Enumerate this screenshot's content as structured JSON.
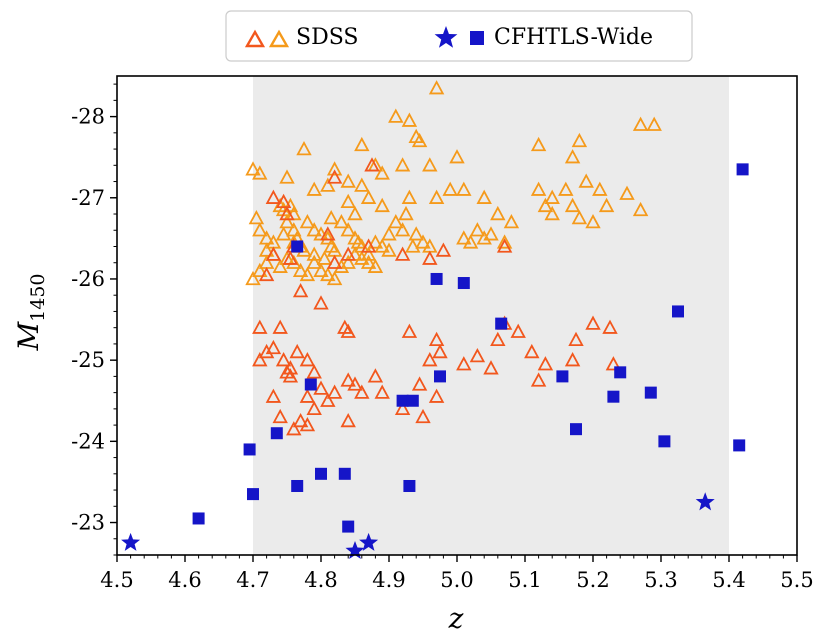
{
  "chart_data": {
    "type": "scatter",
    "title": "",
    "xlabel": "z",
    "ylabel": "M",
    "ylabel_sub": "1450",
    "xlim": [
      4.5,
      5.5
    ],
    "ylim": [
      -22.6,
      -28.5
    ],
    "y_inverted": true,
    "grid": false,
    "shaded_region": {
      "x": [
        4.7,
        5.4
      ],
      "color": "#ebebeb"
    },
    "legend_position": "top-center",
    "x_ticks": [
      4.5,
      4.6,
      4.7,
      4.8,
      4.9,
      5.0,
      5.1,
      5.2,
      5.3,
      5.4,
      5.5
    ],
    "x_tick_labels": [
      "4.5",
      "4.6",
      "4.7",
      "4.8",
      "4.9",
      "5.0",
      "5.1",
      "5.2",
      "5.3",
      "5.4",
      "5.5"
    ],
    "y_ticks": [
      -23,
      -24,
      -25,
      -26,
      -27,
      -28
    ],
    "y_tick_labels": [
      "-23",
      "-24",
      "-25",
      "-26",
      "-27",
      "-28"
    ],
    "colors": {
      "sdss_bright": "#f59a1b",
      "sdss_faint": "#f2571d",
      "cfhtls": "#1515c8",
      "shade": "#ebebeb"
    },
    "legend": [
      {
        "label": "SDSS",
        "markers": [
          "triangle-open-red",
          "triangle-open-orange"
        ]
      },
      {
        "label": "CFHTLS-Wide",
        "markers": [
          "star-blue",
          "square-blue"
        ]
      }
    ],
    "series": [
      {
        "name": "SDSS (bright)",
        "marker": "triangle-open",
        "color": "#f59a1b",
        "points": [
          [
            4.97,
            -28.35
          ],
          [
            4.91,
            -28.0
          ],
          [
            4.93,
            -27.95
          ],
          [
            4.94,
            -27.75
          ],
          [
            4.945,
            -27.7
          ],
          [
            5.27,
            -27.9
          ],
          [
            5.29,
            -27.9
          ],
          [
            5.18,
            -27.7
          ],
          [
            5.12,
            -27.65
          ],
          [
            5.17,
            -27.5
          ],
          [
            4.775,
            -27.6
          ],
          [
            4.86,
            -27.65
          ],
          [
            4.89,
            -27.3
          ],
          [
            4.92,
            -27.4
          ],
          [
            4.96,
            -27.4
          ],
          [
            5.0,
            -27.5
          ],
          [
            4.82,
            -27.35
          ],
          [
            4.88,
            -27.4
          ],
          [
            4.7,
            -27.35
          ],
          [
            4.71,
            -27.3
          ],
          [
            4.75,
            -27.25
          ],
          [
            4.84,
            -27.2
          ],
          [
            4.86,
            -27.15
          ],
          [
            4.79,
            -27.1
          ],
          [
            4.81,
            -27.15
          ],
          [
            4.87,
            -27.0
          ],
          [
            4.89,
            -26.9
          ],
          [
            4.93,
            -27.0
          ],
          [
            4.97,
            -27.0
          ],
          [
            4.99,
            -27.1
          ],
          [
            5.01,
            -27.1
          ],
          [
            5.04,
            -27.0
          ],
          [
            5.06,
            -26.8
          ],
          [
            5.08,
            -26.7
          ],
          [
            5.14,
            -27.0
          ],
          [
            5.16,
            -27.1
          ],
          [
            5.19,
            -27.2
          ],
          [
            5.21,
            -27.1
          ],
          [
            5.25,
            -27.05
          ],
          [
            5.27,
            -26.85
          ],
          [
            5.22,
            -26.9
          ],
          [
            5.17,
            -26.9
          ],
          [
            5.18,
            -26.75
          ],
          [
            5.2,
            -26.7
          ],
          [
            5.12,
            -27.1
          ],
          [
            5.13,
            -26.9
          ],
          [
            5.14,
            -26.8
          ],
          [
            4.705,
            -26.75
          ],
          [
            4.71,
            -26.6
          ],
          [
            4.72,
            -26.5
          ],
          [
            4.74,
            -26.9
          ],
          [
            4.745,
            -26.85
          ],
          [
            4.75,
            -26.7
          ],
          [
            4.76,
            -26.6
          ],
          [
            4.765,
            -26.5
          ],
          [
            4.77,
            -26.4
          ],
          [
            4.775,
            -26.35
          ],
          [
            4.78,
            -26.7
          ],
          [
            4.79,
            -26.6
          ],
          [
            4.8,
            -26.55
          ],
          [
            4.81,
            -26.5
          ],
          [
            4.815,
            -26.4
          ],
          [
            4.82,
            -26.35
          ],
          [
            4.83,
            -26.7
          ],
          [
            4.84,
            -26.6
          ],
          [
            4.85,
            -26.5
          ],
          [
            4.855,
            -26.45
          ],
          [
            4.86,
            -26.4
          ],
          [
            4.87,
            -26.3
          ],
          [
            4.88,
            -26.45
          ],
          [
            4.89,
            -26.4
          ],
          [
            4.9,
            -26.35
          ],
          [
            4.91,
            -26.7
          ],
          [
            4.92,
            -26.6
          ],
          [
            4.925,
            -26.8
          ],
          [
            4.94,
            -26.55
          ],
          [
            4.95,
            -26.45
          ],
          [
            4.96,
            -26.4
          ],
          [
            5.01,
            -26.5
          ],
          [
            5.02,
            -26.45
          ],
          [
            5.03,
            -26.6
          ],
          [
            5.04,
            -26.5
          ],
          [
            5.05,
            -26.55
          ],
          [
            5.07,
            -26.45
          ],
          [
            4.7,
            -26.0
          ],
          [
            4.71,
            -26.1
          ],
          [
            4.72,
            -26.2
          ],
          [
            4.73,
            -26.3
          ],
          [
            4.74,
            -26.15
          ],
          [
            4.75,
            -26.25
          ],
          [
            4.76,
            -26.2
          ],
          [
            4.77,
            -26.1
          ],
          [
            4.78,
            -26.05
          ],
          [
            4.79,
            -26.2
          ],
          [
            4.8,
            -26.1
          ],
          [
            4.81,
            -26.05
          ],
          [
            4.82,
            -26.0
          ],
          [
            4.83,
            -26.15
          ],
          [
            4.84,
            -26.2
          ],
          [
            4.85,
            -26.3
          ],
          [
            4.86,
            -26.25
          ],
          [
            4.87,
            -26.2
          ],
          [
            4.88,
            -26.15
          ],
          [
            4.73,
            -26.45
          ],
          [
            4.72,
            -26.35
          ],
          [
            4.745,
            -26.55
          ],
          [
            4.76,
            -26.45
          ],
          [
            4.79,
            -26.3
          ],
          [
            4.805,
            -26.25
          ],
          [
            4.815,
            -26.75
          ],
          [
            4.84,
            -26.95
          ],
          [
            4.85,
            -26.8
          ],
          [
            4.9,
            -26.55
          ],
          [
            4.935,
            -26.4
          ],
          [
            4.76,
            -26.8
          ],
          [
            4.755,
            -26.9
          ]
        ]
      },
      {
        "name": "SDSS (faint)",
        "marker": "triangle-open",
        "color": "#f2571d",
        "points": [
          [
            4.82,
            -27.25
          ],
          [
            4.875,
            -27.4
          ],
          [
            4.73,
            -27.0
          ],
          [
            4.745,
            -26.95
          ],
          [
            4.75,
            -26.8
          ],
          [
            4.81,
            -26.55
          ],
          [
            4.84,
            -26.3
          ],
          [
            4.87,
            -26.4
          ],
          [
            4.82,
            -26.2
          ],
          [
            4.76,
            -26.4
          ],
          [
            4.73,
            -26.3
          ],
          [
            4.72,
            -26.05
          ],
          [
            4.755,
            -26.25
          ],
          [
            4.77,
            -25.85
          ],
          [
            4.8,
            -25.7
          ],
          [
            4.92,
            -26.3
          ],
          [
            4.96,
            -26.25
          ],
          [
            4.98,
            -26.35
          ],
          [
            5.07,
            -26.4
          ],
          [
            4.71,
            -25.4
          ],
          [
            4.74,
            -25.4
          ],
          [
            4.73,
            -25.15
          ],
          [
            4.745,
            -25.0
          ],
          [
            4.71,
            -25.0
          ],
          [
            4.72,
            -25.1
          ],
          [
            4.75,
            -24.85
          ],
          [
            4.755,
            -24.9
          ],
          [
            4.765,
            -25.1
          ],
          [
            4.78,
            -25.0
          ],
          [
            4.79,
            -24.85
          ],
          [
            4.8,
            -24.65
          ],
          [
            4.81,
            -24.5
          ],
          [
            4.82,
            -24.6
          ],
          [
            4.84,
            -24.75
          ],
          [
            4.85,
            -24.7
          ],
          [
            4.86,
            -24.6
          ],
          [
            4.88,
            -24.8
          ],
          [
            4.89,
            -24.6
          ],
          [
            4.92,
            -24.4
          ],
          [
            4.93,
            -25.35
          ],
          [
            4.945,
            -24.7
          ],
          [
            4.95,
            -24.3
          ],
          [
            4.96,
            -25.0
          ],
          [
            4.97,
            -25.25
          ],
          [
            4.975,
            -25.1
          ],
          [
            5.01,
            -24.95
          ],
          [
            5.03,
            -25.05
          ],
          [
            5.05,
            -24.9
          ],
          [
            5.06,
            -25.25
          ],
          [
            5.07,
            -25.45
          ],
          [
            5.09,
            -25.35
          ],
          [
            5.11,
            -25.1
          ],
          [
            5.12,
            -24.75
          ],
          [
            5.13,
            -24.95
          ],
          [
            5.17,
            -25.0
          ],
          [
            5.175,
            -25.25
          ],
          [
            5.2,
            -25.45
          ],
          [
            5.225,
            -25.4
          ],
          [
            5.23,
            -24.95
          ],
          [
            4.73,
            -24.55
          ],
          [
            4.74,
            -24.3
          ],
          [
            4.76,
            -24.15
          ],
          [
            4.77,
            -24.25
          ],
          [
            4.78,
            -24.2
          ],
          [
            4.79,
            -24.4
          ],
          [
            4.84,
            -24.25
          ],
          [
            4.97,
            -24.55
          ],
          [
            4.84,
            -25.35
          ],
          [
            4.835,
            -25.4
          ],
          [
            4.755,
            -24.8
          ],
          [
            4.78,
            -24.55
          ]
        ]
      },
      {
        "name": "CFHTLS-Wide (squares)",
        "marker": "square",
        "color": "#1515c8",
        "points": [
          [
            4.62,
            -23.05
          ],
          [
            4.695,
            -23.9
          ],
          [
            4.7,
            -23.35
          ],
          [
            4.735,
            -24.1
          ],
          [
            4.765,
            -23.45
          ],
          [
            4.785,
            -24.7
          ],
          [
            4.8,
            -23.6
          ],
          [
            4.835,
            -23.6
          ],
          [
            4.84,
            -22.95
          ],
          [
            4.765,
            -26.4
          ],
          [
            4.92,
            -24.5
          ],
          [
            4.935,
            -24.5
          ],
          [
            4.93,
            -23.45
          ],
          [
            4.97,
            -26.0
          ],
          [
            4.975,
            -24.8
          ],
          [
            5.01,
            -25.95
          ],
          [
            5.065,
            -25.45
          ],
          [
            5.155,
            -24.8
          ],
          [
            5.175,
            -24.15
          ],
          [
            5.23,
            -24.55
          ],
          [
            5.24,
            -24.85
          ],
          [
            5.285,
            -24.6
          ],
          [
            5.305,
            -24.0
          ],
          [
            5.325,
            -25.6
          ],
          [
            5.415,
            -23.95
          ],
          [
            5.42,
            -27.35
          ]
        ]
      },
      {
        "name": "CFHTLS-Wide (stars)",
        "marker": "star",
        "color": "#1515c8",
        "points": [
          [
            4.52,
            -22.75
          ],
          [
            4.85,
            -22.65
          ],
          [
            4.87,
            -22.75
          ],
          [
            5.365,
            -23.25
          ]
        ]
      }
    ]
  }
}
